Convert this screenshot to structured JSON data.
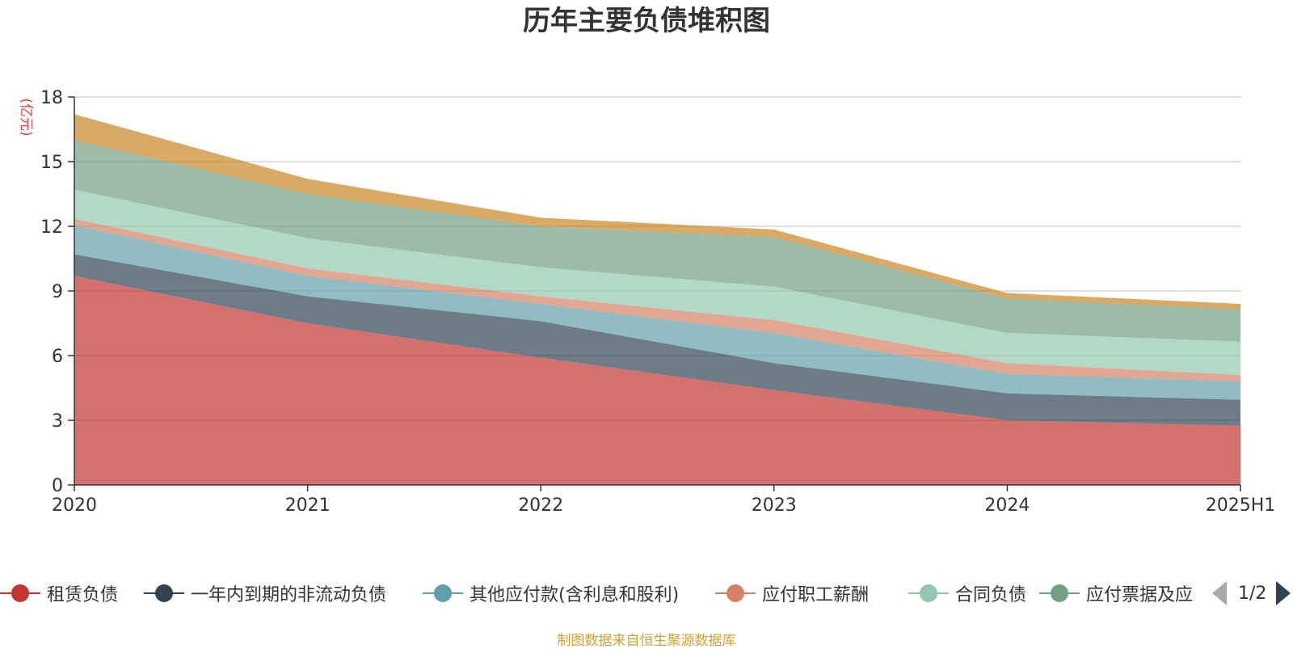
{
  "chart_data": {
    "type": "area",
    "stacked": true,
    "title": "历年主要负债堆积图",
    "ylabel": "(亿元)",
    "xlabel": "",
    "categories": [
      "2020",
      "2021",
      "2022",
      "2023",
      "2024",
      "2025H1"
    ],
    "ylim": [
      0,
      18
    ],
    "yticks": [
      "0",
      "3",
      "6",
      "9",
      "12",
      "15",
      "18"
    ],
    "grid": true,
    "legend_position": "bottom",
    "series": [
      {
        "name": "租赁负债",
        "color": "#c23531",
        "values": [
          9.7,
          7.5,
          5.9,
          4.4,
          3.0,
          2.75
        ]
      },
      {
        "name": "一年内到期的非流动负债",
        "color": "#2f4554",
        "values": [
          1.0,
          1.25,
          1.7,
          1.25,
          1.25,
          1.2
        ]
      },
      {
        "name": "其他应付款(含利息和股利)",
        "color": "#61a0a8",
        "values": [
          1.35,
          0.95,
          0.8,
          1.4,
          0.9,
          0.85
        ]
      },
      {
        "name": "应付职工薪酬",
        "color": "#d48265",
        "values": [
          0.3,
          0.35,
          0.35,
          0.6,
          0.5,
          0.3
        ]
      },
      {
        "name": "合同负债",
        "color": "#91c7ae",
        "values": [
          1.35,
          1.4,
          1.35,
          1.55,
          1.4,
          1.55
        ]
      },
      {
        "name": "应付票据及应付账款",
        "color": "#749f83",
        "values": [
          2.3,
          2.05,
          1.9,
          2.3,
          1.6,
          1.5
        ]
      },
      {
        "name": "",
        "color": "#ca8622",
        "values": [
          1.2,
          0.7,
          0.4,
          0.35,
          0.25,
          0.25
        ]
      }
    ]
  },
  "legend": {
    "items": [
      {
        "label": "租赁负债",
        "color": "#c23531"
      },
      {
        "label": "一年内到期的非流动负债",
        "color": "#2f4554"
      },
      {
        "label": "其他应付款(含利息和股利)",
        "color": "#61a0a8"
      },
      {
        "label": "应付职工薪酬",
        "color": "#d48265"
      },
      {
        "label": "合同负债",
        "color": "#91c7ae"
      },
      {
        "label": "应付票据及应",
        "color": "#749f83"
      }
    ],
    "page_text": "1/2"
  },
  "source_text": "制图数据来自恒生聚源数据库"
}
